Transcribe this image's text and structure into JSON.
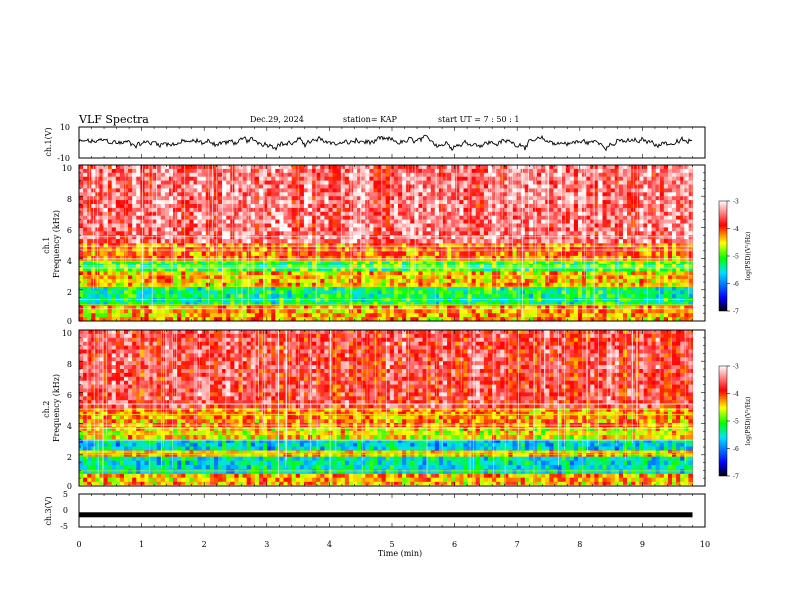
{
  "header": {
    "title": "VLF Spectra",
    "date": "Dec.29, 2024",
    "station": "station= KAP",
    "start_ut": "start  UT =  7 : 50 : 1"
  },
  "colors": {
    "spectrogram_base": "#ff2a1a",
    "colorbar_stops": [
      "#000000",
      "#0000ff",
      "#00e0ff",
      "#00ff00",
      "#ffff00",
      "#ff0000",
      "#ffffff"
    ]
  },
  "chart_data": [
    {
      "type": "line",
      "id": "ch1-waveform",
      "ylabel": "ch.1(V)",
      "ylim": [
        -10,
        10
      ],
      "yticks": [
        "10",
        "-10"
      ],
      "xlim": [
        0,
        10
      ],
      "approx_range": [
        -5,
        5
      ]
    },
    {
      "type": "heatmap",
      "id": "ch1-spectrogram",
      "ylabel": "ch.1\nFrequency (kHz)",
      "ylim": [
        0,
        10
      ],
      "yticks": [
        "0",
        "2",
        "4",
        "6",
        "8",
        "10"
      ],
      "xlim": [
        0,
        9.8
      ],
      "colorbar": {
        "label": "log(PSD)(V²/Hz)",
        "range": [
          -7,
          -3
        ],
        "ticks": [
          "-3",
          "-4",
          "-5",
          "-6",
          "-7"
        ]
      },
      "bands_khz": [
        {
          "from": 0,
          "to": 1.0,
          "level": -4.3
        },
        {
          "from": 1.0,
          "to": 2.2,
          "level": -5.3
        },
        {
          "from": 2.2,
          "to": 3.2,
          "level": -4.4
        },
        {
          "from": 3.2,
          "to": 3.9,
          "level": -5.0
        },
        {
          "from": 3.9,
          "to": 5.0,
          "level": -4.1
        },
        {
          "from": 5.0,
          "to": 10,
          "level": -3.5
        }
      ]
    },
    {
      "type": "heatmap",
      "id": "ch2-spectrogram",
      "ylabel": "ch.2\nFrequency (kHz)",
      "ylim": [
        0,
        10
      ],
      "yticks": [
        "0",
        "2",
        "4",
        "6",
        "8",
        "10"
      ],
      "xlim": [
        0,
        9.8
      ],
      "colorbar": {
        "label": "log(PSD)(V²/Hz)",
        "range": [
          -7,
          -3
        ],
        "ticks": [
          "-3",
          "-4",
          "-5",
          "-6",
          "-7"
        ]
      },
      "bands_khz": [
        {
          "from": 0,
          "to": 0.8,
          "level": -4.3
        },
        {
          "from": 0.8,
          "to": 1.9,
          "level": -5.5
        },
        {
          "from": 1.9,
          "to": 2.3,
          "level": -4.4
        },
        {
          "from": 2.3,
          "to": 3.0,
          "level": -5.6
        },
        {
          "from": 3.0,
          "to": 3.8,
          "level": -4.5
        },
        {
          "from": 3.8,
          "to": 5.0,
          "level": -4.2
        },
        {
          "from": 5.0,
          "to": 10,
          "level": -3.7
        }
      ]
    },
    {
      "type": "line",
      "id": "ch3-waveform",
      "ylabel": "ch.3(V)",
      "ylim": [
        -5,
        5
      ],
      "yticks": [
        "5",
        "0",
        "-5"
      ],
      "xlim": [
        0,
        10
      ],
      "level": -1.3,
      "xlabel": "Time (min)",
      "xticks": [
        "0",
        "1",
        "2",
        "3",
        "4",
        "5",
        "6",
        "7",
        "8",
        "9",
        "10"
      ]
    }
  ]
}
